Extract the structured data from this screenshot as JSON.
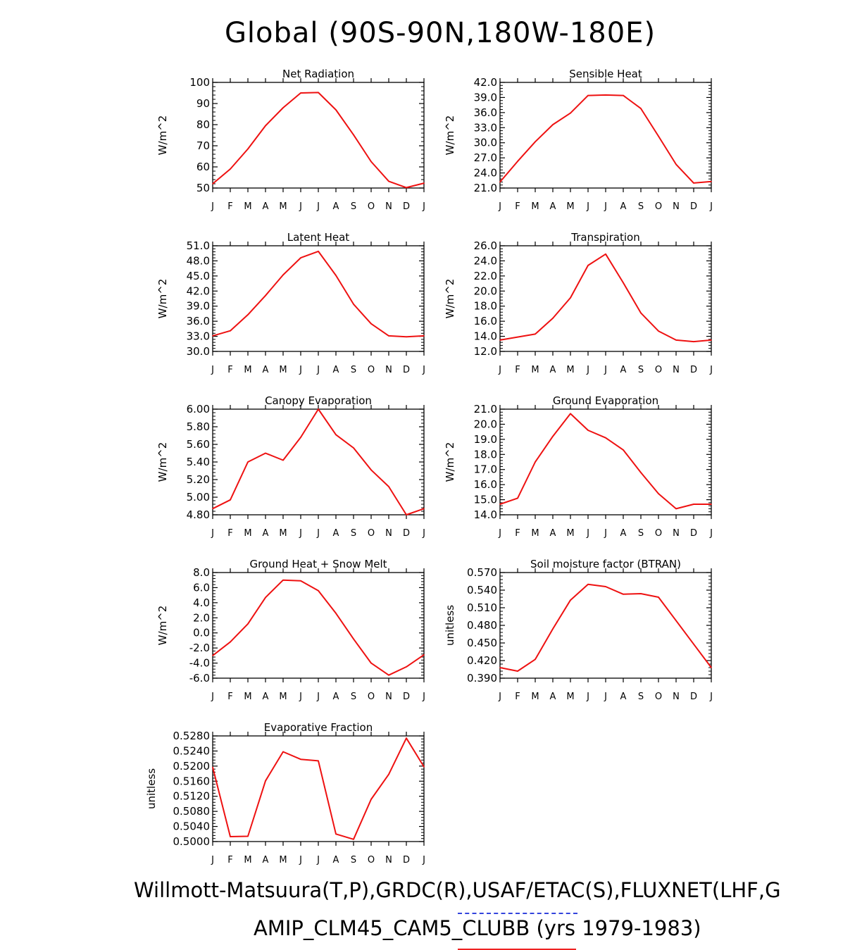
{
  "title": "Global (90S-90N,180W-180E)",
  "footer": {
    "line1": "Willmott-Matsuura(T,P),GRDC(R),USAF/ETAC(S),FLUXNET(LHF,G",
    "line2": "AMIP_CLM45_CAM5_CLUBB (yrs 1979-1983)"
  },
  "colors": {
    "line": "#ee1111",
    "underline1": "#3344dd",
    "underline2": "#ee2222"
  },
  "chart_data": [
    {
      "type": "line",
      "title": "Net Radiation",
      "ylabel": "W/m^2",
      "categories": [
        "J",
        "F",
        "M",
        "A",
        "M",
        "J",
        "J",
        "A",
        "S",
        "O",
        "N",
        "D",
        "J"
      ],
      "values": [
        52,
        59,
        68.5,
        79.5,
        88,
        95,
        95.2,
        87,
        75.2,
        62.5,
        53.2,
        50.2,
        52.3
      ],
      "ylim": [
        50,
        100
      ],
      "yticks": [
        "50",
        "60",
        "70",
        "80",
        "90",
        "100"
      ],
      "grid": false
    },
    {
      "type": "line",
      "title": "Sensible Heat",
      "ylabel": "W/m^2",
      "categories": [
        "J",
        "F",
        "M",
        "A",
        "M",
        "J",
        "J",
        "A",
        "S",
        "O",
        "N",
        "D",
        "J"
      ],
      "values": [
        22.2,
        26.3,
        30.2,
        33.6,
        35.9,
        39.4,
        39.5,
        39.4,
        36.8,
        31.3,
        25.7,
        22,
        22.3
      ],
      "ylim": [
        21,
        42
      ],
      "yticks": [
        "21.0",
        "24.0",
        "27.0",
        "30.0",
        "33.0",
        "36.0",
        "39.0",
        "42.0"
      ],
      "grid": false
    },
    {
      "type": "line",
      "title": "Latent Heat",
      "ylabel": "W/m^2",
      "categories": [
        "J",
        "F",
        "M",
        "A",
        "M",
        "J",
        "J",
        "A",
        "S",
        "O",
        "N",
        "D",
        "J"
      ],
      "values": [
        33.1,
        34.1,
        37.3,
        41.1,
        45.2,
        48.6,
        49.9,
        45.1,
        39.4,
        35.5,
        33.1,
        32.9,
        33.1
      ],
      "ylim": [
        30,
        51
      ],
      "yticks": [
        "30.0",
        "33.0",
        "36.0",
        "39.0",
        "42.0",
        "45.0",
        "48.0",
        "51.0"
      ],
      "grid": false
    },
    {
      "type": "line",
      "title": "Transpiration",
      "ylabel": "W/m^2",
      "categories": [
        "J",
        "F",
        "M",
        "A",
        "M",
        "J",
        "J",
        "A",
        "S",
        "O",
        "N",
        "D",
        "J"
      ],
      "values": [
        13.5,
        13.9,
        14.3,
        16.4,
        19.1,
        23.4,
        24.9,
        21.1,
        17.1,
        14.7,
        13.5,
        13.3,
        13.5
      ],
      "ylim": [
        12,
        26
      ],
      "yticks": [
        "12.0",
        "14.0",
        "16.0",
        "18.0",
        "20.0",
        "22.0",
        "24.0",
        "26.0"
      ],
      "grid": false
    },
    {
      "type": "line",
      "title": "Canopy Evaporation",
      "ylabel": "W/m^2",
      "categories": [
        "J",
        "F",
        "M",
        "A",
        "M",
        "J",
        "J",
        "A",
        "S",
        "O",
        "N",
        "D",
        "J"
      ],
      "values": [
        4.87,
        4.97,
        5.4,
        5.5,
        5.42,
        5.68,
        6.0,
        5.71,
        5.56,
        5.31,
        5.12,
        4.8,
        4.87
      ],
      "ylim": [
        4.8,
        6.0
      ],
      "yticks": [
        "4.80",
        "5.00",
        "5.20",
        "5.40",
        "5.60",
        "5.80",
        "6.00"
      ],
      "grid": false
    },
    {
      "type": "line",
      "title": "Ground Evaporation",
      "ylabel": "W/m^2",
      "categories": [
        "J",
        "F",
        "M",
        "A",
        "M",
        "J",
        "J",
        "A",
        "S",
        "O",
        "N",
        "D",
        "J"
      ],
      "values": [
        14.7,
        15.1,
        17.5,
        19.2,
        20.7,
        19.6,
        19.1,
        18.3,
        16.8,
        15.4,
        14.4,
        14.7,
        14.7
      ],
      "ylim": [
        14,
        21
      ],
      "yticks": [
        "14.0",
        "15.0",
        "16.0",
        "17.0",
        "18.0",
        "19.0",
        "20.0",
        "21.0"
      ],
      "grid": false
    },
    {
      "type": "line",
      "title": "Ground Heat + Snow Melt",
      "ylabel": "W/m^2",
      "categories": [
        "J",
        "F",
        "M",
        "A",
        "M",
        "J",
        "J",
        "A",
        "S",
        "O",
        "N",
        "D",
        "J"
      ],
      "values": [
        -3,
        -1.2,
        1.2,
        4.7,
        7,
        6.9,
        5.6,
        2.6,
        -0.8,
        -4,
        -5.6,
        -4.5,
        -2.9
      ],
      "ylim": [
        -6,
        8
      ],
      "yticks": [
        "-6.0",
        "-4.0",
        "-2.0",
        "0.0",
        "2.0",
        "4.0",
        "6.0",
        "8.0"
      ],
      "grid": false
    },
    {
      "type": "line",
      "title": "Soil moisture factor (BTRAN)",
      "ylabel": "unitless",
      "categories": [
        "J",
        "F",
        "M",
        "A",
        "M",
        "J",
        "J",
        "A",
        "S",
        "O",
        "N",
        "D",
        "J"
      ],
      "values": [
        0.408,
        0.402,
        0.422,
        0.474,
        0.523,
        0.55,
        0.546,
        0.533,
        0.534,
        0.528,
        0.488,
        0.448,
        0.408
      ],
      "ylim": [
        0.39,
        0.57
      ],
      "yticks": [
        "0.390",
        "0.420",
        "0.450",
        "0.480",
        "0.510",
        "0.540",
        "0.570"
      ],
      "grid": false
    },
    {
      "type": "line",
      "title": "Evaporative Fraction",
      "ylabel": "unitless",
      "categories": [
        "J",
        "F",
        "M",
        "A",
        "M",
        "J",
        "J",
        "A",
        "S",
        "O",
        "N",
        "D",
        "J"
      ],
      "values": [
        0.5197,
        0.5013,
        0.5014,
        0.5161,
        0.5238,
        0.5218,
        0.5214,
        0.502,
        0.5006,
        0.5112,
        0.5178,
        0.5274,
        0.5198
      ],
      "ylim": [
        0.5,
        0.528
      ],
      "yticks": [
        "0.5000",
        "0.5040",
        "0.5080",
        "0.5120",
        "0.5160",
        "0.5200",
        "0.5240",
        "0.5280"
      ],
      "grid": false
    }
  ]
}
